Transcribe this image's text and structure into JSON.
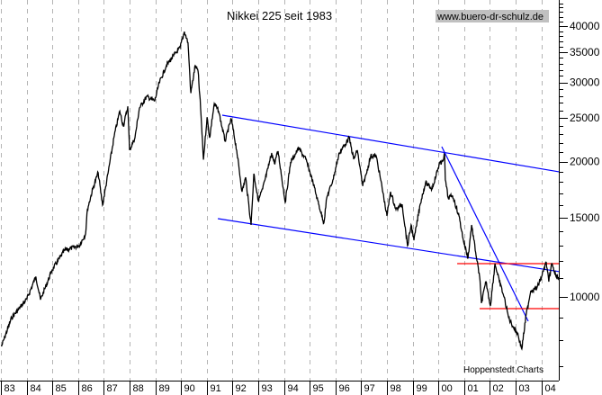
{
  "chart_data": {
    "type": "line",
    "title": "Nikkei 225 seit 1983",
    "watermark": "www.buero-dr-schulz.de",
    "source_note": "Hoppenstedt Charts",
    "y_scale": "log",
    "ylim": [
      7140,
      45700
    ],
    "xlim": [
      1983.0,
      2004.7
    ],
    "y_ticks": [
      10000,
      15000,
      20000,
      25000,
      30000,
      35000,
      40000
    ],
    "y_tick_labels": [
      "10000",
      "15000",
      "20000",
      "25000",
      "30000",
      "35000",
      "40000"
    ],
    "y_minor_tick_step": 1000,
    "x_ticks": [
      1983,
      1984,
      1985,
      1986,
      1987,
      1988,
      1989,
      1990,
      1991,
      1992,
      1993,
      1994,
      1995,
      1996,
      1997,
      1998,
      1999,
      2000,
      2001,
      2002,
      2003,
      2004
    ],
    "x_tick_labels": [
      "83",
      "84",
      "85",
      "86",
      "87",
      "88",
      "89",
      "90",
      "91",
      "92",
      "93",
      "94",
      "95",
      "96",
      "97",
      "98",
      "99",
      "00",
      "01",
      "02",
      "03",
      "04"
    ],
    "grid": "vertical dashed at each year",
    "y_axis_side": "right",
    "colors": {
      "series": "#000000",
      "trendline": "#0000ff",
      "support": "#ff0000",
      "grid": "#b4b4b4",
      "watermark_bg": "#c0c0c0"
    },
    "series": [
      {
        "x": [
          1983.02,
          1983.42,
          1984.01,
          1984.36,
          1984.54,
          1984.99,
          1985.48,
          1986.04,
          1986.29,
          1986.36,
          1986.57,
          1986.78,
          1986.95,
          1987.16,
          1987.41,
          1987.62,
          1987.76,
          1987.93,
          1988.0,
          1988.21,
          1988.38,
          1988.66,
          1988.98,
          1989.15,
          1989.43,
          1989.71,
          1989.96,
          1990.13,
          1990.27,
          1990.38,
          1990.55,
          1990.66,
          1990.76,
          1990.87,
          1991.01,
          1991.11,
          1991.29,
          1991.46,
          1991.71,
          1991.95,
          1992.16,
          1992.37,
          1992.51,
          1992.72,
          1992.83,
          1993.0,
          1993.17,
          1993.38,
          1993.52,
          1993.63,
          1993.77,
          1994.05,
          1994.26,
          1994.57,
          1994.85,
          1995.13,
          1995.31,
          1995.55,
          1995.66,
          1995.9,
          1996.15,
          1996.43,
          1996.53,
          1996.71,
          1996.85,
          1997.06,
          1997.2,
          1997.37,
          1997.58,
          1997.76,
          1998.0,
          1998.14,
          1998.35,
          1998.59,
          1998.8,
          1998.94,
          1999.05,
          1999.29,
          1999.5,
          1999.75,
          2000.06,
          2000.1,
          2000.24,
          2000.27,
          2000.38,
          2000.55,
          2000.8,
          2000.97,
          2001.15,
          2001.29,
          2001.5,
          2001.6,
          2001.67,
          2001.85,
          2002.02,
          2002.2,
          2002.37,
          2002.55,
          2002.73,
          2002.9,
          2003.07,
          2003.24,
          2003.41,
          2003.59,
          2003.83,
          2004.01,
          2004.19,
          2004.29,
          2004.4,
          2004.57,
          2004.67
        ],
        "values": [
          7760,
          8990,
          9900,
          11100,
          9860,
          11480,
          12700,
          13000,
          13800,
          15640,
          17390,
          18900,
          16000,
          18800,
          22900,
          25900,
          23980,
          26540,
          21200,
          22600,
          26300,
          27900,
          27300,
          29900,
          32700,
          34400,
          35800,
          38900,
          36800,
          28400,
          32700,
          31800,
          26300,
          20200,
          25100,
          22600,
          26900,
          25900,
          22200,
          24900,
          21200,
          17140,
          18450,
          14460,
          18800,
          16370,
          17390,
          19330,
          20900,
          19800,
          21100,
          16230,
          19960,
          21390,
          20240,
          17950,
          16370,
          14600,
          16600,
          18200,
          20900,
          22100,
          22600,
          20240,
          21200,
          17640,
          18800,
          20600,
          20600,
          18200,
          15140,
          17140,
          15640,
          16070,
          13000,
          14460,
          13370,
          16070,
          17950,
          17390,
          19960,
          19700,
          20700,
          18200,
          16600,
          16800,
          15140,
          13370,
          12200,
          14460,
          12020,
          11100,
          9690,
          10810,
          9550,
          11860,
          10810,
          10000,
          8990,
          8590,
          8320,
          7660,
          9120,
          10330,
          10470,
          11100,
          11940,
          10810,
          11860,
          11100,
          11070
        ]
      }
    ],
    "trendlines": [
      {
        "kind": "channel-upper",
        "color": "#0000ff",
        "from": [
          1991.6,
          25370
        ],
        "to": [
          2004.71,
          18970
        ]
      },
      {
        "kind": "channel-lower",
        "color": "#0000ff",
        "from": [
          1991.43,
          14930
        ],
        "to": [
          2004.71,
          11380
        ]
      },
      {
        "kind": "downtrend",
        "color": "#0000ff",
        "from": [
          2000.13,
          21590
        ],
        "to": [
          2003.49,
          8830
        ]
      },
      {
        "kind": "resistance",
        "color": "#ff0000",
        "from": [
          2000.73,
          11860
        ],
        "to": [
          2004.71,
          11860
        ]
      },
      {
        "kind": "support",
        "color": "#ff0000",
        "from": [
          2001.6,
          9420
        ],
        "to": [
          2004.71,
          9420
        ]
      }
    ]
  }
}
